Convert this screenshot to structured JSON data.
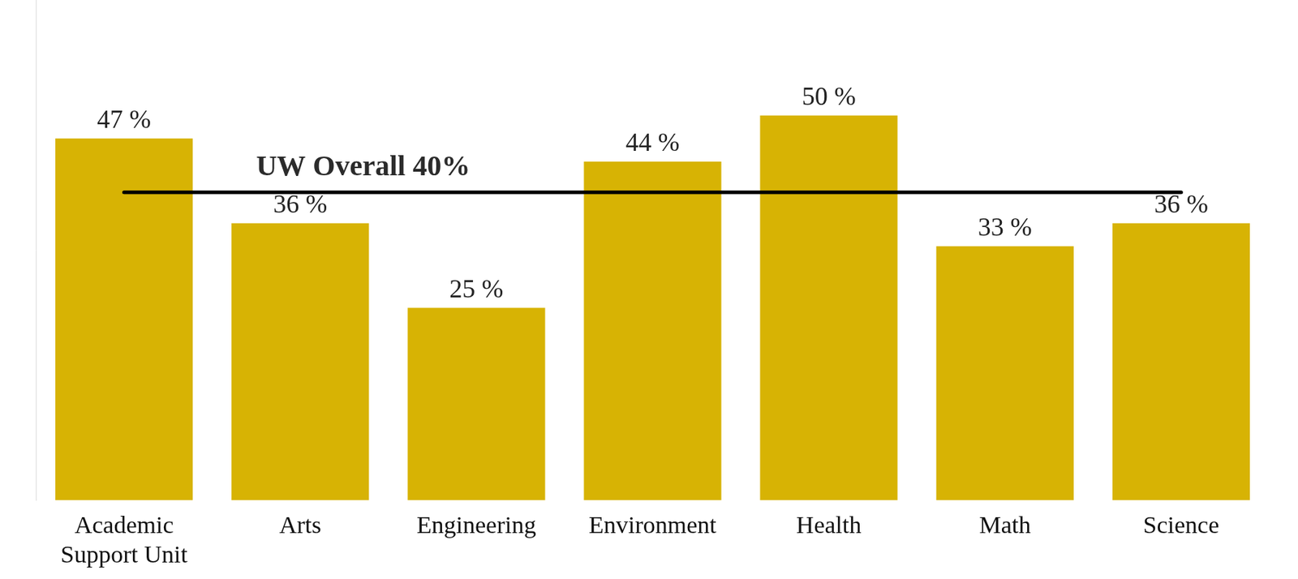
{
  "chart_data": {
    "type": "bar",
    "categories": [
      "Academic Support Unit",
      "Arts",
      "Engineering",
      "Environment",
      "Health",
      "Math",
      "Science"
    ],
    "values": [
      47,
      36,
      25,
      44,
      50,
      33,
      36
    ],
    "value_labels": [
      "47 %",
      "36 %",
      "25 %",
      "44 %",
      "50 %",
      "33 %",
      "36 %"
    ],
    "color": "#D7B304",
    "ylim": [
      0,
      65
    ],
    "grid": false,
    "data_labels": true,
    "tick_labels": "x",
    "reference_line": {
      "value": 40,
      "label": "UW Overall 40%"
    }
  }
}
